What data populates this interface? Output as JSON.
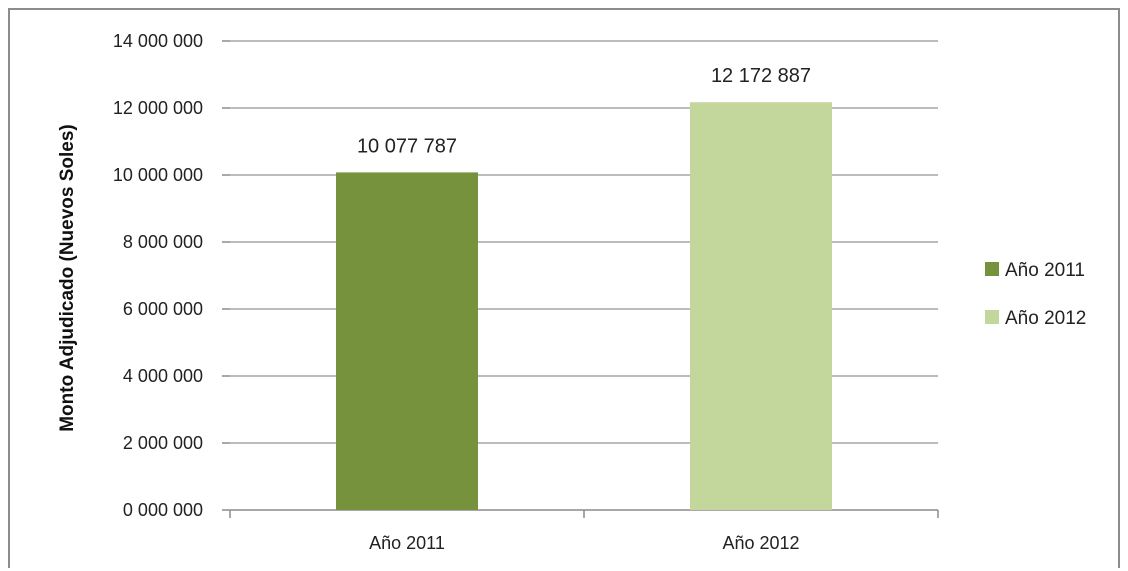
{
  "chart_data": {
    "type": "bar",
    "title": "",
    "xlabel": "",
    "ylabel": "Monto Adjudicado (Nuevos Soles)",
    "categories": [
      "Año 2011",
      "Año 2012"
    ],
    "values": [
      10077787,
      12172887
    ],
    "data_labels": [
      "10 077 787",
      "12 172 887"
    ],
    "ylim": [
      0,
      14000000
    ],
    "yticks": [
      0,
      2000000,
      4000000,
      6000000,
      8000000,
      10000000,
      12000000,
      14000000
    ],
    "ytick_labels": [
      "0 000 000",
      "2 000 000",
      "4 000 000",
      "6 000 000",
      "8 000 000",
      "10 000 000",
      "12 000 000",
      "14 000 000"
    ],
    "grid": true,
    "legend": {
      "position": "right",
      "entries": [
        {
          "label": "Año 2011",
          "color": "#76923c"
        },
        {
          "label": "Año 2012",
          "color": "#c3d69b"
        }
      ]
    },
    "colors": [
      "#76923c",
      "#c3d69b"
    ]
  }
}
